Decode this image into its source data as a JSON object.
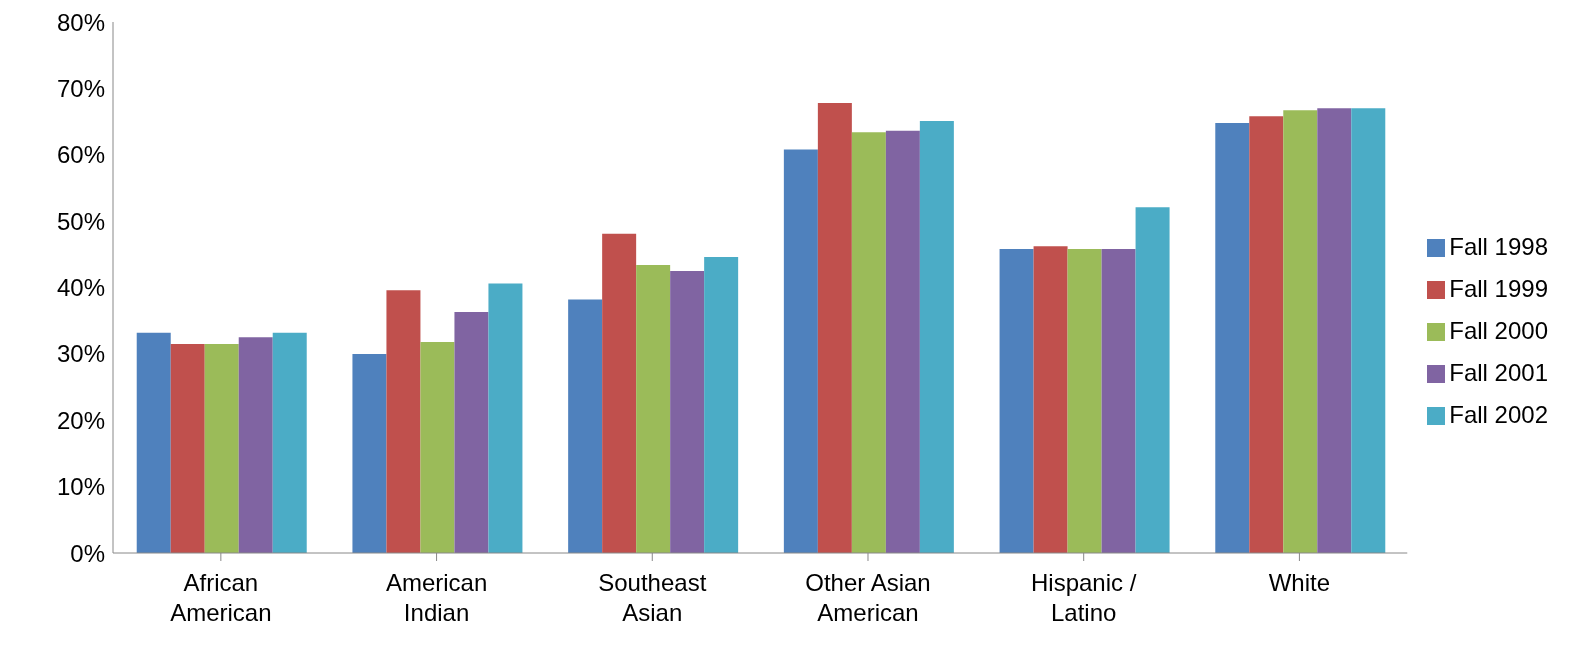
{
  "chart_data": {
    "type": "bar",
    "categories": [
      "African American",
      "American Indian",
      "Southeast Asian",
      "Other Asian American",
      "Hispanic / Latino",
      "White"
    ],
    "series": [
      {
        "name": "Fall 1998",
        "color": "#4f81bd",
        "values": [
          33.2,
          30.0,
          38.2,
          60.8,
          45.8,
          64.8
        ]
      },
      {
        "name": "Fall 1999",
        "color": "#c0504d",
        "values": [
          31.5,
          39.6,
          48.1,
          67.8,
          46.2,
          65.8
        ]
      },
      {
        "name": "Fall 2000",
        "color": "#9bbb59",
        "values": [
          31.5,
          31.8,
          43.4,
          63.4,
          45.8,
          66.7
        ]
      },
      {
        "name": "Fall 2001",
        "color": "#8064a2",
        "values": [
          32.5,
          36.3,
          42.5,
          63.6,
          45.8,
          67.0
        ]
      },
      {
        "name": "Fall 2002",
        "color": "#4bacc6",
        "values": [
          33.2,
          40.6,
          44.6,
          65.1,
          52.1,
          67.0
        ]
      }
    ],
    "ylim": [
      0,
      80
    ],
    "yticks": [
      {
        "value": 0,
        "label": "0%"
      },
      {
        "value": 10,
        "label": "10%"
      },
      {
        "value": 20,
        "label": "20%"
      },
      {
        "value": 30,
        "label": "30%"
      },
      {
        "value": 40,
        "label": "40%"
      },
      {
        "value": 50,
        "label": "50%"
      },
      {
        "value": 60,
        "label": "60%"
      },
      {
        "value": 70,
        "label": "70%"
      },
      {
        "value": 80,
        "label": "80%"
      }
    ],
    "grid": false,
    "legend": "right"
  }
}
